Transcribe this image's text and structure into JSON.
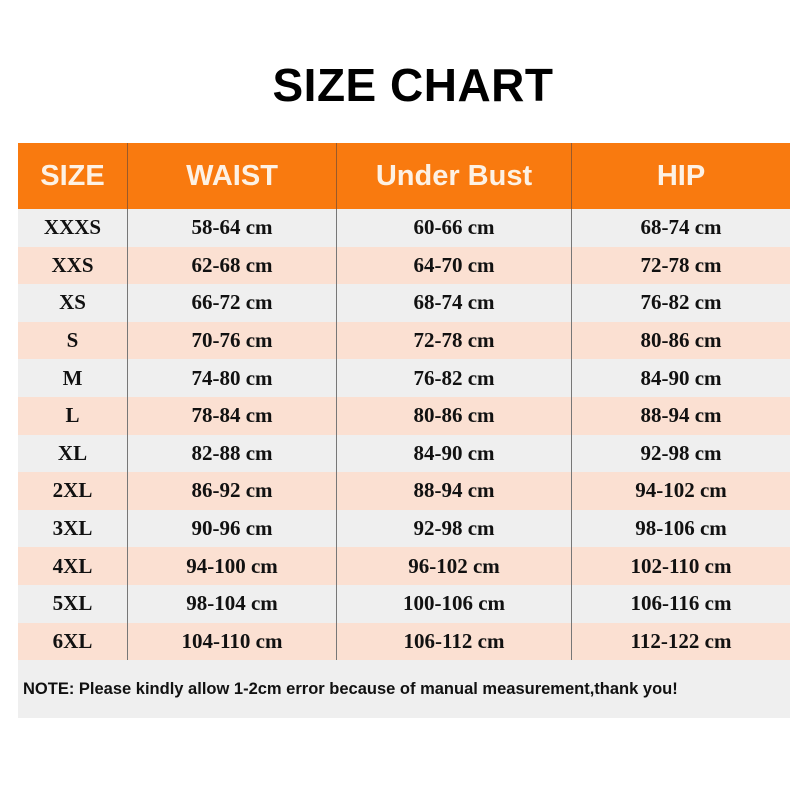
{
  "title": "SIZE CHART",
  "colors": {
    "header_bg": "#f97a0f",
    "header_text": "#fdf1e4",
    "row_odd": "#efefef",
    "row_even": "#fbe0d2"
  },
  "table": {
    "headers": [
      "SIZE",
      "WAIST",
      "Under Bust",
      "HIP"
    ],
    "rows": [
      [
        "XXXS",
        "58-64 cm",
        "60-66 cm",
        "68-74 cm"
      ],
      [
        "XXS",
        "62-68 cm",
        "64-70 cm",
        "72-78 cm"
      ],
      [
        "XS",
        "66-72 cm",
        "68-74 cm",
        "76-82 cm"
      ],
      [
        "S",
        "70-76 cm",
        "72-78 cm",
        "80-86 cm"
      ],
      [
        "M",
        "74-80 cm",
        "76-82 cm",
        "84-90 cm"
      ],
      [
        "L",
        "78-84 cm",
        "80-86 cm",
        "88-94 cm"
      ],
      [
        "XL",
        "82-88 cm",
        "84-90 cm",
        "92-98 cm"
      ],
      [
        "2XL",
        "86-92 cm",
        "88-94 cm",
        "94-102 cm"
      ],
      [
        "3XL",
        "90-96 cm",
        "92-98 cm",
        "98-106 cm"
      ],
      [
        "4XL",
        "94-100 cm",
        "96-102 cm",
        "102-110 cm"
      ],
      [
        "5XL",
        "98-104 cm",
        "100-106 cm",
        "106-116 cm"
      ],
      [
        "6XL",
        "104-110 cm",
        "106-112 cm",
        "112-122 cm"
      ]
    ]
  },
  "note": "NOTE: Please kindly allow 1-2cm error because of manual measurement,thank you!"
}
